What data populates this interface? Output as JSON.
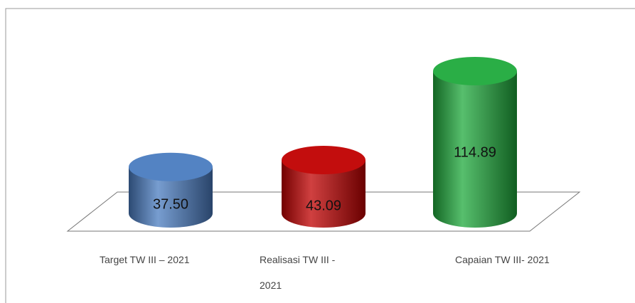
{
  "chart_data": {
    "type": "cylinder",
    "categories": [
      "Target TW III – 2021",
      "Realisasi TW III - 2021",
      "Capaian TW III- 2021"
    ],
    "values": [
      37.5,
      43.09,
      114.89
    ],
    "value_labels": [
      "37.50",
      "43.09",
      "114.89"
    ],
    "colors": [
      "#4a7cc0",
      "#c00000",
      "#1faa3c"
    ]
  }
}
